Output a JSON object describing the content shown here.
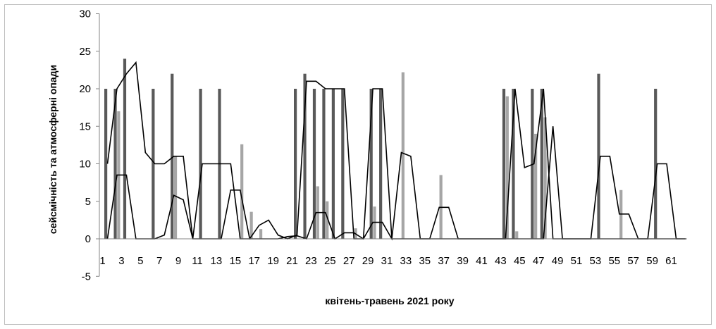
{
  "chart_data": {
    "type": "bar",
    "title": "",
    "xlabel": "квітень-травень  2021 року",
    "ylabel": "сейсмічність  та атмосферні опади",
    "ylim": [
      -5,
      30
    ],
    "y_ticks": [
      -5,
      0,
      5,
      10,
      15,
      20,
      25,
      30
    ],
    "x_ticks": [
      1,
      3,
      5,
      7,
      9,
      11,
      13,
      15,
      17,
      19,
      21,
      23,
      25,
      27,
      29,
      31,
      33,
      35,
      37,
      39,
      41,
      43,
      45,
      47,
      49,
      51,
      53,
      55,
      57,
      59,
      61
    ],
    "x": [
      1,
      2,
      3,
      4,
      5,
      6,
      7,
      8,
      9,
      10,
      11,
      12,
      13,
      14,
      15,
      16,
      17,
      18,
      19,
      20,
      21,
      22,
      23,
      24,
      25,
      26,
      27,
      28,
      29,
      30,
      31,
      32,
      33,
      34,
      35,
      36,
      37,
      38,
      39,
      40,
      41,
      42,
      43,
      44,
      45,
      46,
      47,
      48,
      49,
      50,
      51,
      52,
      53,
      54,
      55,
      56,
      57,
      58,
      59,
      60,
      61,
      62
    ],
    "grid": false,
    "legend": "none",
    "series": [
      {
        "kind": "bar",
        "color": "#595959",
        "values": [
          20,
          20,
          24,
          0,
          0,
          20,
          0,
          22,
          0,
          0,
          20,
          0,
          20,
          0,
          0,
          0,
          0,
          0,
          0,
          0,
          20,
          22,
          20,
          20,
          20,
          20,
          0,
          0,
          20,
          20,
          0,
          0,
          0,
          0,
          0,
          0,
          0,
          0,
          0,
          0,
          0,
          0,
          20,
          20,
          0,
          20,
          20,
          0,
          0,
          0,
          0,
          0,
          22,
          0,
          0,
          0,
          0,
          0,
          20,
          0,
          0,
          0
        ]
      },
      {
        "kind": "bar",
        "color": "#a6a6a6",
        "values": [
          0,
          17,
          0,
          0,
          0,
          0,
          0,
          11,
          0,
          0,
          0,
          0,
          0,
          0,
          12.6,
          3.6,
          1.3,
          0,
          0,
          0,
          0,
          0,
          7,
          5,
          0,
          0,
          1.4,
          0,
          4.3,
          0,
          0,
          22.2,
          0,
          0,
          0,
          8.5,
          0,
          0,
          0,
          0,
          0,
          0,
          19,
          1,
          0,
          14,
          16.2,
          0,
          0,
          0,
          0,
          0,
          0,
          0,
          6.5,
          0,
          0,
          0,
          0,
          0,
          0,
          0
        ]
      },
      {
        "kind": "line",
        "color": "#000000",
        "values": [
          10,
          20,
          22,
          23.5,
          11.5,
          10,
          10,
          11,
          11,
          0,
          10,
          10,
          10,
          10,
          0,
          0,
          1.8,
          2.5,
          0.5,
          0,
          0.5,
          21,
          21,
          20,
          20,
          20,
          0,
          0,
          20,
          20,
          0,
          0,
          0,
          0,
          0,
          0,
          0,
          0,
          0,
          0,
          0,
          0,
          0,
          20,
          9.5,
          10,
          20,
          0,
          0,
          0,
          0,
          0,
          0,
          0,
          0,
          0,
          0,
          0,
          0,
          0,
          0,
          0
        ]
      },
      {
        "kind": "line",
        "color": "#000000",
        "values": [
          0,
          8.5,
          8.5,
          0,
          0,
          0,
          0.5,
          5.8,
          5.2,
          0,
          0,
          0,
          0,
          6.5,
          6.5,
          0,
          0,
          0,
          0,
          0.3,
          0.4,
          0,
          3.5,
          3.5,
          0,
          0.8,
          0.8,
          0,
          2.2,
          2.2,
          0,
          11.5,
          11,
          0,
          0,
          4.2,
          4.2,
          0,
          0,
          0,
          0,
          0,
          0,
          0,
          0,
          0,
          0,
          15,
          0,
          0,
          0,
          0,
          11,
          11,
          3.3,
          3.3,
          0,
          0,
          10,
          10,
          0,
          0
        ]
      }
    ]
  }
}
